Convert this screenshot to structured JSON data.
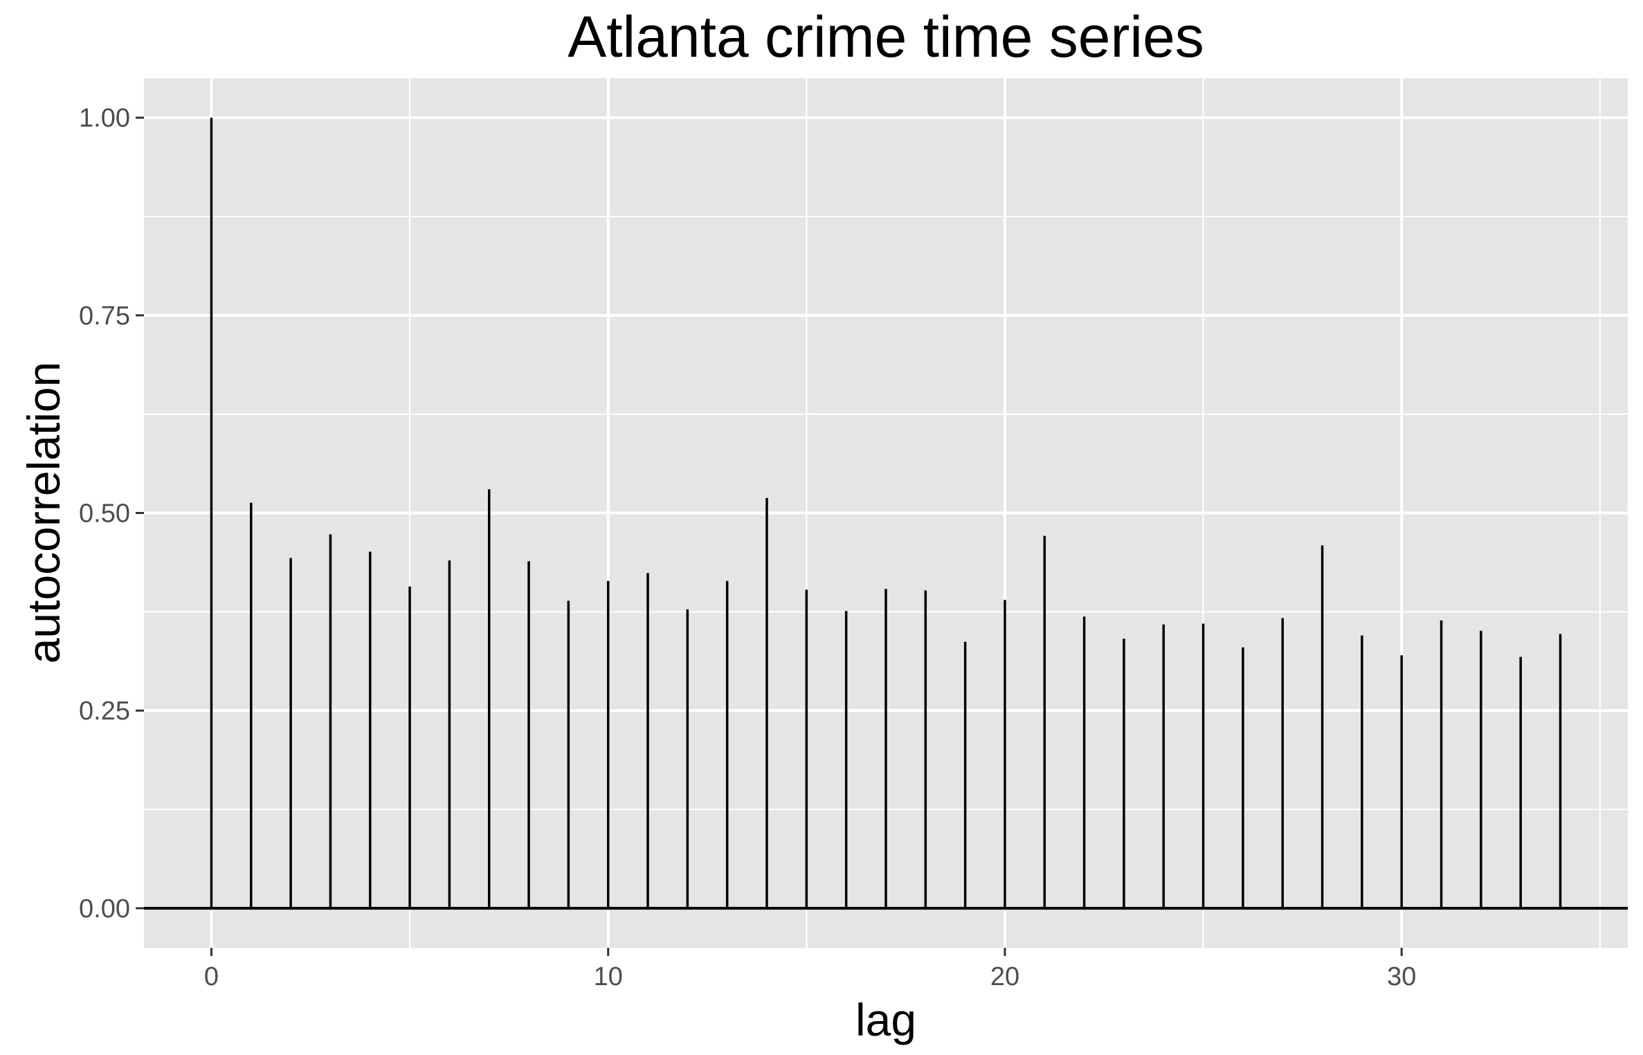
{
  "chart_data": {
    "type": "bar",
    "title": "Atlanta crime time series",
    "xlabel": "lag",
    "ylabel": "autocorrelation",
    "x": [
      0,
      1,
      2,
      3,
      4,
      5,
      6,
      7,
      8,
      9,
      10,
      11,
      12,
      13,
      14,
      15,
      16,
      17,
      18,
      19,
      20,
      21,
      22,
      23,
      24,
      25,
      26,
      27,
      28,
      29,
      30,
      31,
      32,
      33,
      34
    ],
    "values": [
      1.0,
      0.513,
      0.443,
      0.473,
      0.451,
      0.407,
      0.44,
      0.53,
      0.439,
      0.389,
      0.414,
      0.424,
      0.378,
      0.414,
      0.519,
      0.403,
      0.376,
      0.404,
      0.402,
      0.337,
      0.39,
      0.471,
      0.369,
      0.341,
      0.359,
      0.36,
      0.33,
      0.367,
      0.459,
      0.345,
      0.32,
      0.364,
      0.351,
      0.318,
      0.347
    ],
    "xlim": [
      -1.7,
      35.7
    ],
    "ylim": [
      -0.05,
      1.05
    ],
    "x_ticks": [
      0,
      10,
      20,
      30
    ],
    "x_tick_labels": [
      "0",
      "10",
      "20",
      "30"
    ],
    "y_ticks": [
      0.0,
      0.25,
      0.5,
      0.75,
      1.0
    ],
    "y_tick_labels": [
      "0.00",
      "0.25",
      "0.50",
      "0.75",
      "1.00"
    ],
    "grid": true,
    "legend": "none",
    "colors": {
      "panel": "#e5e5e5",
      "grid": "#ffffff",
      "bars": "#000000",
      "baseline": "#000000",
      "ticks": "#333333"
    }
  }
}
